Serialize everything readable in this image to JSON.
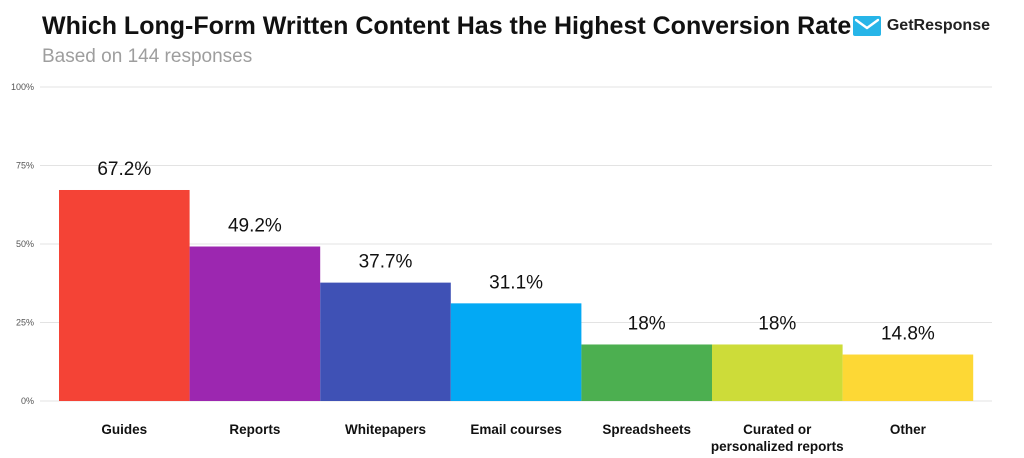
{
  "header": {
    "title": "Which Long-Form Written Content Has the Highest Conversion Rate",
    "subtitle": "Based on 144 responses",
    "brand": "GetResponse"
  },
  "icons": {
    "brand_logo": "envelope-check-icon"
  },
  "colors": {
    "brand": "#27b5e8",
    "bars": [
      "#f44336",
      "#9c27b0",
      "#3f51b5",
      "#03a9f4",
      "#4caf50",
      "#cddc39",
      "#fdd835"
    ]
  },
  "chart_data": {
    "type": "bar",
    "title": "Which Long-Form Written Content Has the Highest Conversion Rate",
    "subtitle": "Based on 144 responses",
    "categories": [
      "Guides",
      "Reports",
      "Whitepapers",
      "Email courses",
      "Spreadsheets",
      "Curated or personalized reports",
      "Other"
    ],
    "category_lines": [
      [
        "Guides"
      ],
      [
        "Reports"
      ],
      [
        "Whitepapers"
      ],
      [
        "Email courses"
      ],
      [
        "Spreadsheets"
      ],
      [
        "Curated or",
        "personalized reports"
      ],
      [
        "Other"
      ]
    ],
    "values": [
      67.2,
      49.2,
      37.7,
      31.1,
      18,
      18,
      14.8
    ],
    "value_labels": [
      "67.2%",
      "49.2%",
      "37.7%",
      "31.1%",
      "18%",
      "18%",
      "14.8%"
    ],
    "ylim": [
      0,
      100
    ],
    "yticks": [
      0,
      25,
      50,
      75,
      100
    ],
    "ytick_labels": [
      "0%",
      "25%",
      "50%",
      "75%",
      "100%"
    ],
    "xlabel": "",
    "ylabel": "",
    "grid": true
  }
}
